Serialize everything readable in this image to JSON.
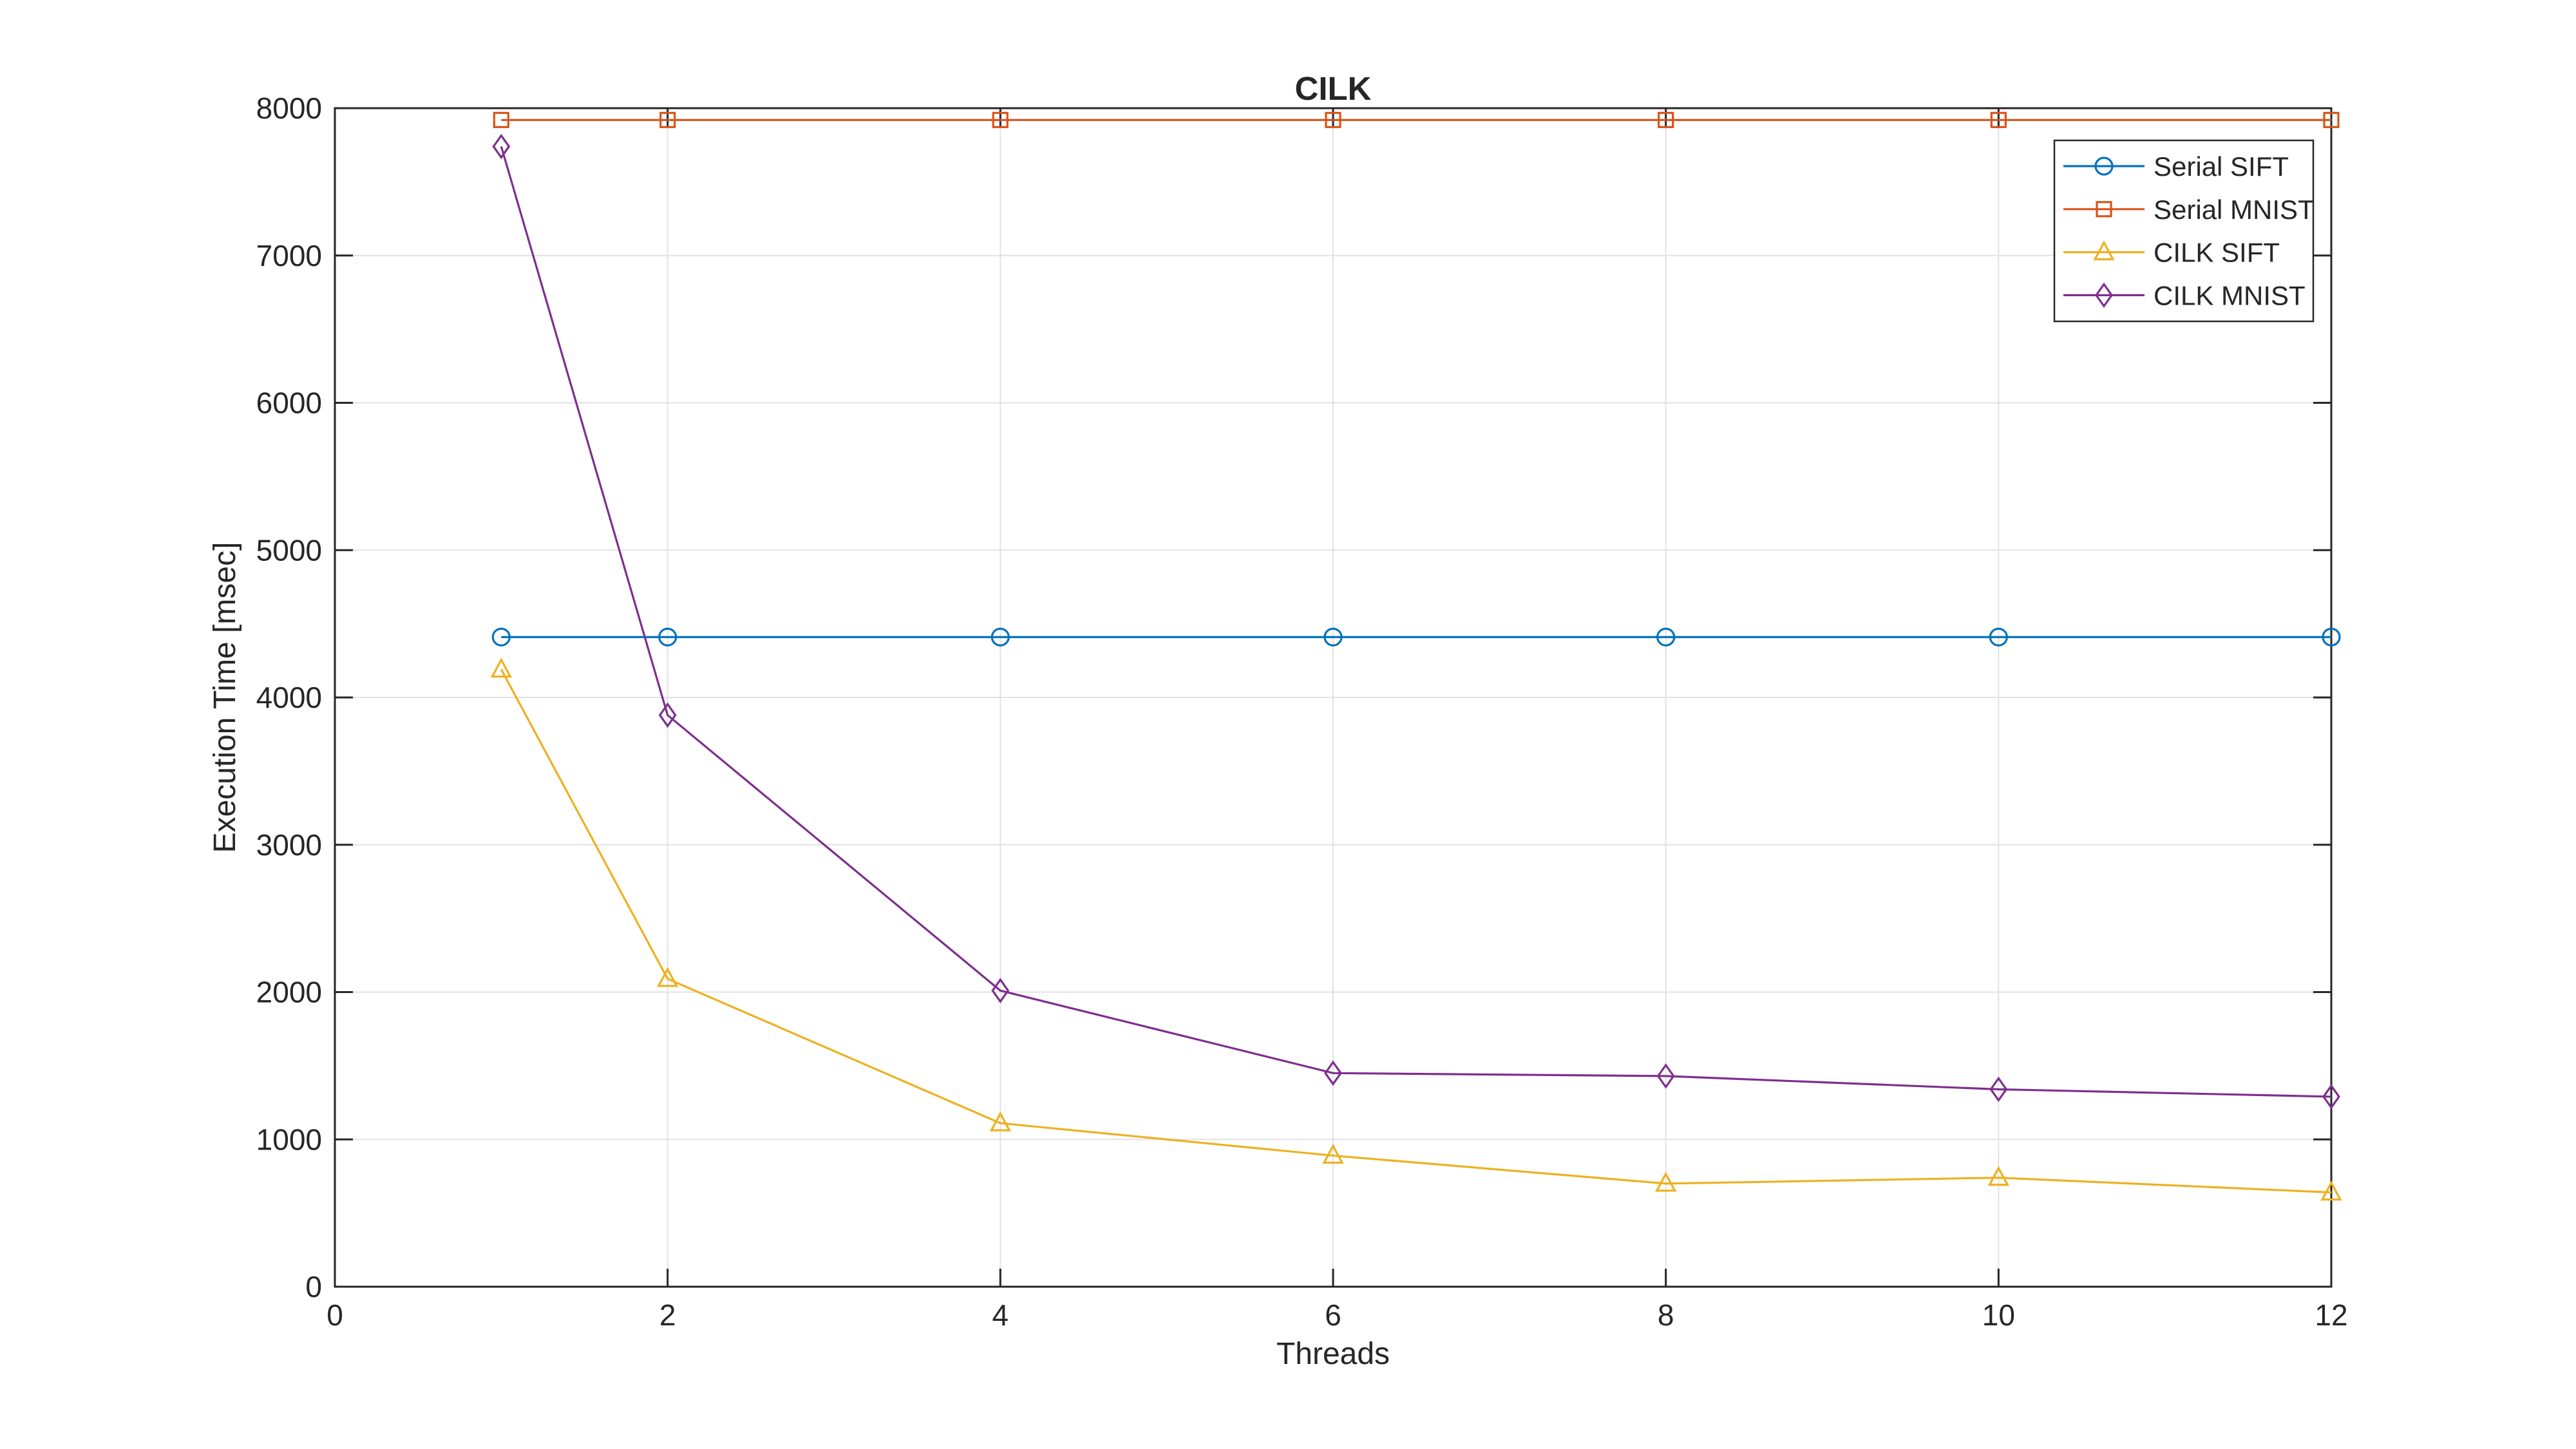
{
  "figure": {
    "background": "#FFFFFF"
  },
  "colors": {
    "axis": "#262626",
    "grid": "#E2E2E2",
    "tick_label": "#262626",
    "legend_border": "#262626",
    "legend_background": "#FFFFFF"
  },
  "chart_data": {
    "type": "line",
    "title": "CILK",
    "xlabel": "Threads",
    "ylabel": "Execution Time [msec]",
    "x": [
      1,
      2,
      4,
      6,
      8,
      10,
      12
    ],
    "series": [
      {
        "name": "Serial SIFT",
        "color": "#0072BD",
        "marker": "circle",
        "values": [
          4410,
          4410,
          4410,
          4410,
          4410,
          4410,
          4410
        ]
      },
      {
        "name": "Serial MNIST",
        "color": "#D95319",
        "marker": "square",
        "values": [
          7920,
          7920,
          7920,
          7920,
          7920,
          7920,
          7920
        ]
      },
      {
        "name": "CILK SIFT",
        "color": "#EDB120",
        "marker": "triangle",
        "values": [
          4190,
          2090,
          1110,
          890,
          700,
          740,
          640
        ]
      },
      {
        "name": "CILK MNIST",
        "color": "#7E2F8E",
        "marker": "diamond",
        "values": [
          7740,
          3880,
          2010,
          1450,
          1430,
          1340,
          1290
        ]
      }
    ],
    "xlim": [
      0,
      12
    ],
    "ylim": [
      0,
      8000
    ],
    "xticks": [
      0,
      2,
      4,
      6,
      8,
      10,
      12
    ],
    "yticks": [
      0,
      1000,
      2000,
      3000,
      4000,
      5000,
      6000,
      7000,
      8000
    ],
    "grid": true,
    "legend": {
      "position": "northeast",
      "entries": [
        "Serial SIFT",
        "Serial MNIST",
        "CILK SIFT",
        "CILK MNIST"
      ]
    }
  }
}
